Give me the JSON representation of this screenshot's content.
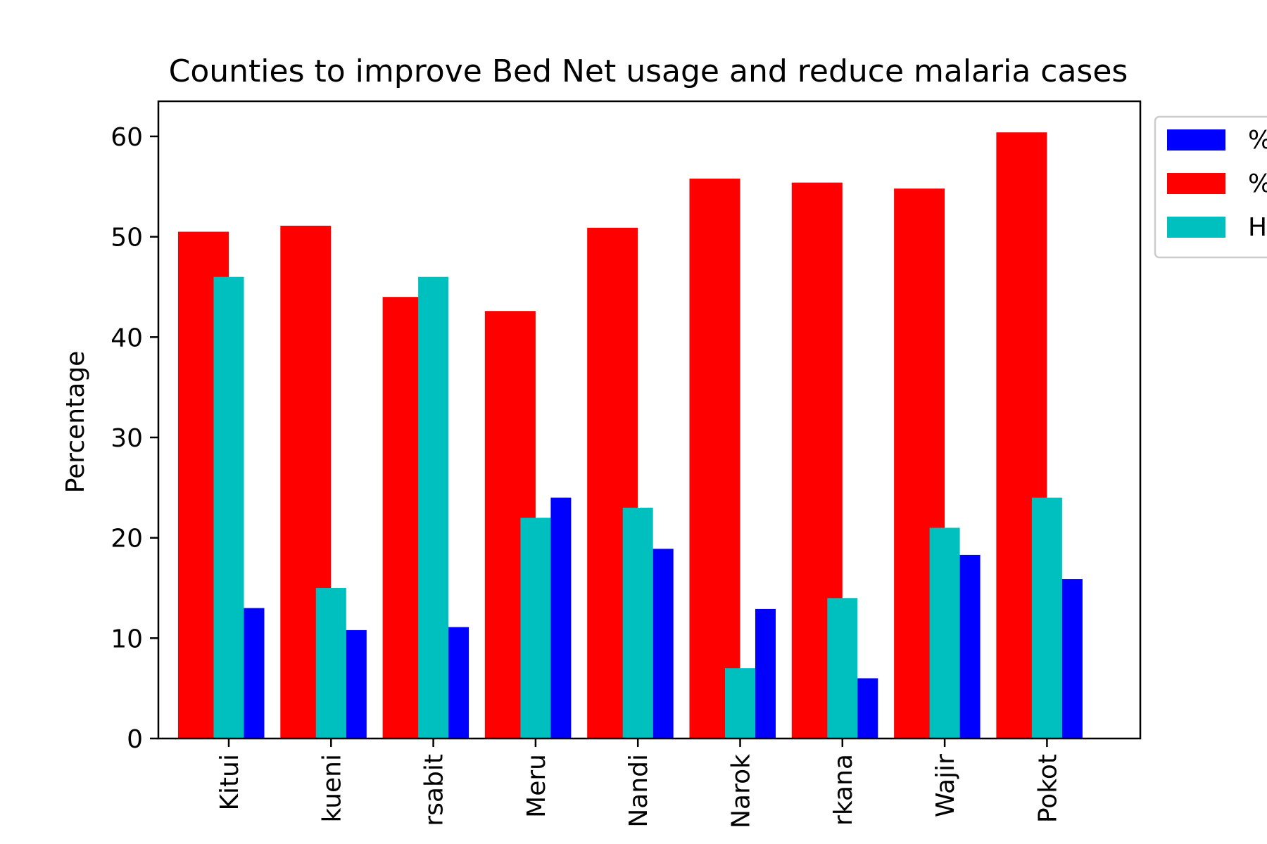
{
  "chart_data": {
    "type": "bar",
    "title": "Counties to improve Bed Net usage and reduce malaria cases",
    "xlabel": "",
    "ylabel": "Percentage",
    "ylim": [
      0,
      63.5
    ],
    "yticks": [
      0,
      10,
      20,
      30,
      40,
      50,
      60
    ],
    "grid": false,
    "legend_position": "upper-right-outside",
    "categories": [
      "Kitui",
      "kueni",
      "rsabit",
      "Meru",
      "Nandi",
      "Narok",
      "rkana",
      "Wajir",
      "Pokot"
    ],
    "series": [
      {
        "color": "#ff0000",
        "values": [
          50.5,
          51.1,
          44.0,
          42.6,
          50.9,
          55.8,
          55.4,
          54.8,
          60.4
        ]
      },
      {
        "color": "#00bfbf",
        "values": [
          46.0,
          15.0,
          46.0,
          22.0,
          23.0,
          7.0,
          14.0,
          21.0,
          24.0
        ]
      },
      {
        "color": "#0000ff",
        "values": [
          13.0,
          10.8,
          11.1,
          24.0,
          18.9,
          12.9,
          6.0,
          18.3,
          15.9
        ]
      }
    ],
    "legend_entries": [
      {
        "color": "#0000ff",
        "label": "%"
      },
      {
        "color": "#ff0000",
        "label": "%"
      },
      {
        "color": "#00bfbf",
        "label": "H"
      }
    ]
  }
}
